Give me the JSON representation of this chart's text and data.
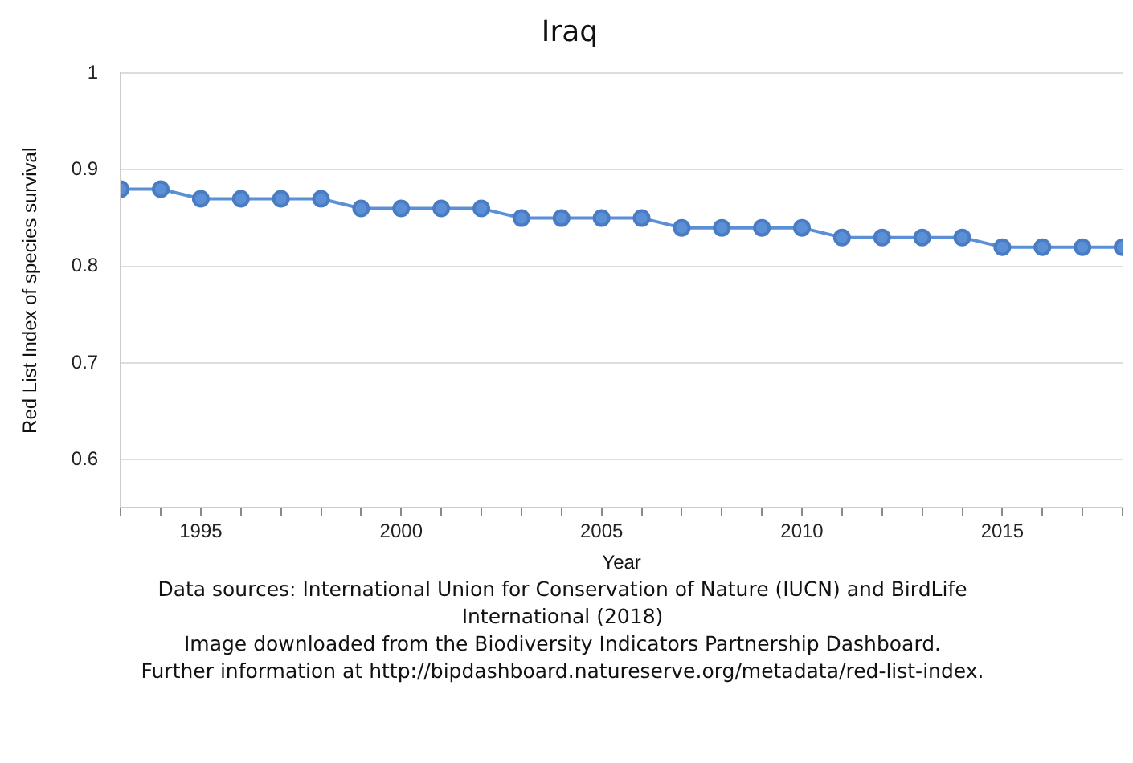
{
  "chart_data": {
    "type": "line",
    "title": "Iraq",
    "xlabel": "Year",
    "ylabel": "Red List Index of species survival",
    "x": [
      1993,
      1994,
      1995,
      1996,
      1997,
      1998,
      1999,
      2000,
      2001,
      2002,
      2003,
      2004,
      2005,
      2006,
      2007,
      2008,
      2009,
      2010,
      2011,
      2012,
      2013,
      2014,
      2015,
      2016,
      2017,
      2018
    ],
    "series": [
      {
        "color": "#5b8fd6",
        "values": [
          0.88,
          0.88,
          0.87,
          0.87,
          0.87,
          0.87,
          0.86,
          0.86,
          0.86,
          0.86,
          0.85,
          0.85,
          0.85,
          0.85,
          0.84,
          0.84,
          0.84,
          0.84,
          0.83,
          0.83,
          0.83,
          0.83,
          0.82,
          0.82,
          0.82,
          0.82
        ]
      }
    ],
    "xlim": [
      1993,
      2018
    ],
    "xticks": [
      {
        "value": 1993,
        "label": null
      },
      {
        "value": 1994,
        "label": null
      },
      1995,
      {
        "value": 1996,
        "label": null
      },
      {
        "value": 1997,
        "label": null
      },
      {
        "value": 1998,
        "label": null
      },
      {
        "value": 1999,
        "label": null
      },
      2000,
      {
        "value": 2001,
        "label": null
      },
      {
        "value": 2002,
        "label": null
      },
      {
        "value": 2003,
        "label": null
      },
      {
        "value": 2004,
        "label": null
      },
      2005,
      {
        "value": 2006,
        "label": null
      },
      {
        "value": 2007,
        "label": null
      },
      {
        "value": 2008,
        "label": null
      },
      {
        "value": 2009,
        "label": null
      },
      2010,
      {
        "value": 2011,
        "label": null
      },
      {
        "value": 2012,
        "label": null
      },
      {
        "value": 2013,
        "label": null
      },
      {
        "value": 2014,
        "label": null
      },
      2015,
      {
        "value": 2016,
        "label": null
      },
      {
        "value": 2017,
        "label": null
      },
      {
        "value": 2018,
        "label": null
      }
    ],
    "ylim": [
      0.55,
      1
    ],
    "yticks": [
      0.6,
      0.7,
      0.8,
      0.9,
      1
    ],
    "grid": "y",
    "legend": false,
    "marker": "circle",
    "line_style": "solid",
    "annotations": [
      "Data sources: International Union for Conservation of Nature (IUCN) and BirdLife International (2018)",
      "Image downloaded from the Biodiversity Indicators Partnership Dashboard.",
      "Further information at http://bipdashboard.natureserve.org/metadata/red-list-index."
    ]
  }
}
